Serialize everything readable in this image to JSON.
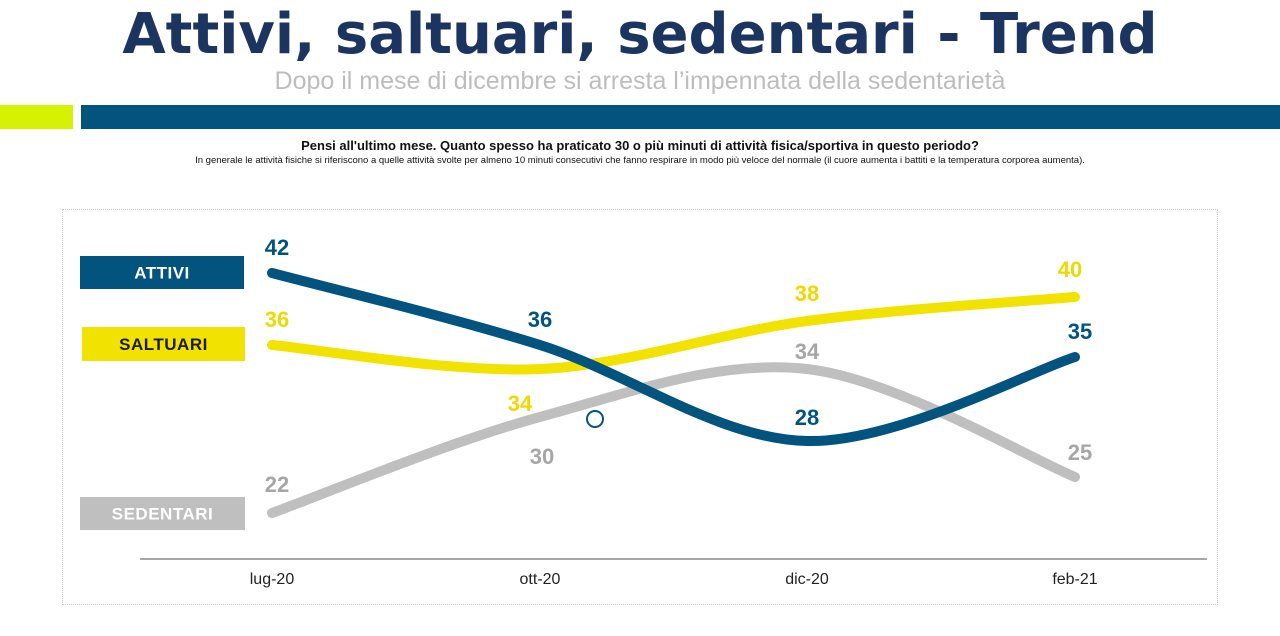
{
  "header": {
    "title": "Attivi, saltuari, sedentari - Trend",
    "subtitle": "Dopo il mese di dicembre si arresta l’impennata della sedentarietà",
    "question": "Pensi all'ultimo mese. Quanto spesso ha praticato 30 o più minuti di attività fisica/sportiva in questo periodo?",
    "note": "In generale le attività fisiche si riferiscono a quelle attività svolte per almeno 10 minuti consecutivi che fanno respirare in modo più veloce del normale (il cuore aumenta i battiti e la temperatura corporea aumenta)."
  },
  "colors": {
    "title": "#1b3560",
    "accent_green": "#d7f200",
    "accent_blue": "#02547f",
    "attivi": "#02547f",
    "saltuari": "#f2e200",
    "saltuari_label": "#f0d800",
    "sedentari": "#bfbfbf",
    "sedentari_label": "#a6a6a6"
  },
  "chart_data": {
    "type": "line",
    "title": "",
    "xlabel": "",
    "ylabel": "",
    "categories": [
      "lug-20",
      "ott-20",
      "dic-20",
      "feb-21"
    ],
    "series": [
      {
        "name": "ATTIVI",
        "values": [
          42,
          36,
          28,
          35
        ],
        "color": "#02547f"
      },
      {
        "name": "SALTUARI",
        "values": [
          36,
          34,
          38,
          40
        ],
        "color": "#f2e200"
      },
      {
        "name": "SEDENTARI",
        "values": [
          22,
          30,
          34,
          25
        ],
        "color": "#bfbfbf"
      }
    ],
    "legend": "left",
    "grid": false
  }
}
